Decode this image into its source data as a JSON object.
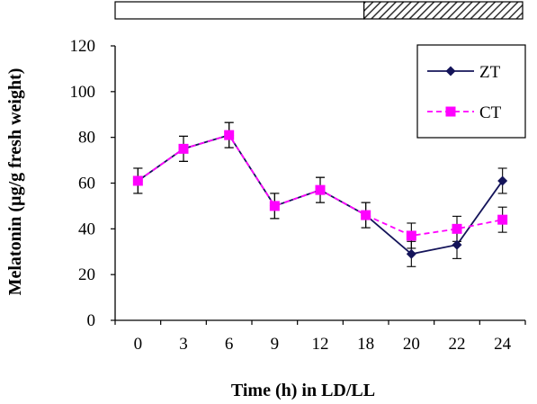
{
  "chart_data": {
    "type": "line",
    "title": "",
    "xlabel": "Time (h) in LD/LL",
    "ylabel": "Melatonin (µg/g fresh weight)",
    "categories": [
      "0",
      "3",
      "6",
      "9",
      "12",
      "18",
      "20",
      "22",
      "24"
    ],
    "ylim": [
      0,
      120
    ],
    "yticks": [
      "0",
      "20",
      "40",
      "60",
      "80",
      "100",
      "120"
    ],
    "grid": false,
    "legend_position": "top-right",
    "light_dark_bar": {
      "light_until_category": "18",
      "dark_from_category": "18"
    },
    "series": [
      {
        "name": "ZT",
        "color": "#14145a",
        "line_style": "solid",
        "marker": "diamond",
        "values": [
          61,
          75,
          81,
          50,
          57,
          46,
          29,
          33,
          61
        ],
        "errors": [
          5.5,
          5.5,
          5.5,
          5.5,
          5.5,
          5.5,
          5.5,
          6,
          5.5
        ]
      },
      {
        "name": "CT",
        "color": "#ff00ff",
        "line_style": "dashed",
        "marker": "square",
        "values": [
          61,
          75,
          81,
          50,
          57,
          46,
          37,
          40,
          44
        ],
        "errors": [
          5.5,
          5.5,
          5.5,
          5.5,
          5.5,
          5.5,
          5.5,
          5.5,
          5.5
        ]
      }
    ]
  }
}
